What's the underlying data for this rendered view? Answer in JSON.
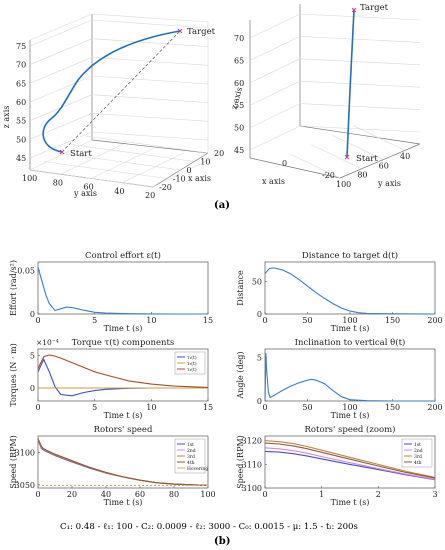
{
  "subfigure_labels": {
    "a": "(a)",
    "b": "(b)"
  },
  "params": "C₁: 0.48 - ℓ₁: 100 - C₂: 0.0009 - ℓ₂: 3000 - C₀: 0.0015 - μ: 1.5 - tₗ: 200s",
  "colors": {
    "trajectory": "#1f6fc2",
    "effort": "#3a7fc6",
    "torque_x": "#3d4fc8",
    "torque_y": "#c8a23a",
    "torque_z": "#a5502f",
    "rotor1": "#4b4bd0",
    "rotor2": "#d58ad6",
    "rotor3": "#b9893a",
    "rotor4": "#8e5a3a",
    "hovering": "#d8b060"
  },
  "chart_data": [
    {
      "type": "line",
      "view": "3d",
      "xlabel": "x axis",
      "ylabel": "y axis",
      "zlabel": "z axis",
      "xticks": [
        "20",
        "10",
        "0",
        "-10",
        "-20"
      ],
      "yticks": [
        "100",
        "80",
        "60",
        "40",
        "20"
      ],
      "zticks": [
        "45",
        "50",
        "55",
        "60",
        "65",
        "70",
        "75"
      ],
      "annotations": [
        "Target",
        "Start"
      ],
      "start": {
        "x": 0,
        "y": 90,
        "z": 47
      },
      "target": {
        "x": 0,
        "y": 20,
        "z": 77
      },
      "series": [
        {
          "values": [
            [
              0,
              90,
              47
            ],
            [
              -12,
              92,
              50
            ],
            [
              -14,
              88,
              55
            ],
            [
              -10,
              80,
              61
            ],
            [
              -5,
              68,
              67
            ],
            [
              -2,
              52,
              71
            ],
            [
              -1,
              38,
              74
            ],
            [
              0,
              20,
              77
            ]
          ]
        }
      ]
    },
    {
      "type": "line",
      "view": "3d",
      "xlabel": "x axis",
      "ylabel": "y axis",
      "zlabel": "z axis",
      "xticks": [
        "0",
        "-20"
      ],
      "yticks": [
        "100",
        "80",
        "60",
        "40"
      ],
      "zticks": [
        "45",
        "50",
        "55",
        "60",
        "65",
        "70"
      ],
      "annotations": [
        "Target",
        "Start"
      ]
    },
    {
      "type": "line",
      "title": "Control effort ε(t)",
      "xlabel": "Time t (s)",
      "ylabel": "Effort (rad/s²)",
      "xlim": [
        0,
        15
      ],
      "ylim": [
        0,
        0.06
      ],
      "xticks": [
        0,
        5,
        10,
        15
      ],
      "yticks": [
        0,
        0.05
      ],
      "x": [
        0,
        0.3,
        0.7,
        1,
        1.5,
        2,
        2.5,
        3,
        3.5,
        4,
        5,
        6,
        8,
        10,
        12,
        15
      ],
      "series": [
        {
          "values": [
            0.054,
            0.04,
            0.022,
            0.012,
            0.004,
            0.006,
            0.008,
            0.0075,
            0.006,
            0.0045,
            0.002,
            0.001,
            0.0003,
            0.0001,
            0,
            0
          ]
        }
      ]
    },
    {
      "type": "line",
      "title": "Distance to target d(t)",
      "xlabel": "Time t (s)",
      "ylabel": "Distance",
      "xlim": [
        0,
        200
      ],
      "ylim": [
        0,
        80
      ],
      "xticks": [
        0,
        50,
        100,
        150,
        200
      ],
      "yticks": [
        0,
        50
      ],
      "x": [
        0,
        5,
        10,
        20,
        30,
        40,
        50,
        60,
        70,
        80,
        90,
        100,
        110,
        120,
        150,
        200
      ],
      "series": [
        {
          "values": [
            62,
            70,
            71,
            68,
            62,
            53,
            43,
            33,
            24,
            16,
            9,
            4.5,
            2,
            1,
            0.3,
            0
          ]
        }
      ]
    },
    {
      "type": "line",
      "title": "Torque τ(t) components",
      "xlabel": "Time t (s)",
      "ylabel": "Torques (N · m)",
      "multiplier": "×10⁻⁴",
      "xlim": [
        0,
        15
      ],
      "ylim": [
        -2,
        6
      ],
      "xticks": [
        0,
        5,
        10,
        15
      ],
      "yticks": [
        0,
        5
      ],
      "x": [
        0,
        0.5,
        1,
        1.5,
        2,
        3,
        4,
        5,
        6,
        8,
        10,
        12,
        15
      ],
      "legend": {
        "entries": [
          "τ₁(t)",
          "τ₂(t)",
          "τ₃(t)"
        ],
        "position": "top-right"
      },
      "series": [
        {
          "name": "τ₁(t)",
          "values": [
            2.5,
            4.4,
            2.5,
            0.2,
            -1.0,
            -1.2,
            -0.7,
            -0.4,
            -0.2,
            -0.05,
            0,
            0,
            0
          ]
        },
        {
          "name": "τ₂(t)",
          "values": [
            0,
            0,
            0,
            0,
            0,
            0,
            0,
            0,
            0,
            0,
            0,
            0,
            0
          ]
        },
        {
          "name": "τ₃(t)",
          "values": [
            3.0,
            4.8,
            5.1,
            4.9,
            4.6,
            3.9,
            3.2,
            2.5,
            2.0,
            1.1,
            0.6,
            0.3,
            0.1
          ]
        }
      ]
    },
    {
      "type": "line",
      "title": "Inclination to vertical θ(t)",
      "xlabel": "Time t (s)",
      "ylabel": "Angle (deg)",
      "xlim": [
        0,
        200
      ],
      "ylim": [
        0,
        6
      ],
      "xticks": [
        0,
        50,
        100,
        150,
        200
      ],
      "yticks": [
        0,
        5
      ],
      "x": [
        0,
        1,
        2,
        4,
        6,
        10,
        20,
        30,
        40,
        50,
        55,
        60,
        70,
        80,
        90,
        100,
        120,
        150,
        200
      ],
      "series": [
        {
          "values": [
            0,
            5.5,
            3.5,
            1,
            0.4,
            0.6,
            1.2,
            1.7,
            2.1,
            2.4,
            2.5,
            2.4,
            2.0,
            1.2,
            0.5,
            0.15,
            0.03,
            0,
            0
          ]
        }
      ]
    },
    {
      "type": "line",
      "title": "Rotors' speed",
      "xlabel": "Time t (s)",
      "ylabel": "Speed (RPM)",
      "xlim": [
        0,
        100
      ],
      "ylim": [
        3045,
        3125
      ],
      "xticks": [
        0,
        20,
        40,
        60,
        80,
        100
      ],
      "yticks": [
        3050,
        3100
      ],
      "x": [
        0,
        1,
        2,
        3,
        5,
        10,
        20,
        30,
        40,
        50,
        60,
        70,
        80,
        90,
        100
      ],
      "legend": {
        "entries": [
          "1st",
          "2nd",
          "3rd",
          "4th",
          "Hovering"
        ],
        "position": "top-right"
      },
      "series": [
        {
          "name": "1st",
          "values": [
            3118,
            3112,
            3106,
            3104,
            3101,
            3095,
            3085,
            3076,
            3068,
            3062,
            3057,
            3053,
            3051,
            3050,
            3049
          ]
        },
        {
          "name": "2nd",
          "values": [
            3119,
            3113,
            3107,
            3105,
            3102,
            3096,
            3086,
            3077,
            3069,
            3062,
            3057,
            3053,
            3051,
            3050,
            3049
          ]
        },
        {
          "name": "3rd",
          "values": [
            3120,
            3114,
            3108,
            3105,
            3102,
            3096,
            3086,
            3077,
            3068,
            3062,
            3057,
            3053,
            3051,
            3050,
            3049
          ]
        },
        {
          "name": "4th",
          "values": [
            3121,
            3115,
            3109,
            3106,
            3103,
            3097,
            3087,
            3077,
            3069,
            3062,
            3057,
            3053,
            3051,
            3050,
            3049
          ]
        },
        {
          "name": "Hovering",
          "values": [
            3049,
            3049,
            3049,
            3049,
            3049,
            3049,
            3049,
            3049,
            3049,
            3049,
            3049,
            3049,
            3049,
            3049,
            3049
          ]
        }
      ]
    },
    {
      "type": "line",
      "title": "Rotors' speed (zoom)",
      "xlabel": "Time t (s)",
      "ylabel": "Speed (RPM)",
      "xlim": [
        0,
        3
      ],
      "ylim": [
        3100,
        3122
      ],
      "xticks": [
        0,
        1,
        2,
        3
      ],
      "yticks": [
        3100,
        3110,
        3120
      ],
      "x": [
        0,
        0.25,
        0.5,
        0.75,
        1,
        1.5,
        2,
        2.5,
        3
      ],
      "legend": {
        "entries": [
          "1st",
          "2nd",
          "3rd",
          "4th"
        ],
        "position": "top-right"
      },
      "series": [
        {
          "name": "1st",
          "values": [
            3115.5,
            3115.2,
            3114.5,
            3113.5,
            3112.3,
            3110,
            3107.8,
            3105.5,
            3103.5
          ]
        },
        {
          "name": "2nd",
          "values": [
            3117,
            3116.6,
            3115.8,
            3114.7,
            3113.3,
            3110.7,
            3108.2,
            3105.8,
            3103.7
          ]
        },
        {
          "name": "3rd",
          "values": [
            3120,
            3119.6,
            3118.8,
            3117.5,
            3116,
            3113,
            3110,
            3107,
            3104.5
          ]
        },
        {
          "name": "4th",
          "values": [
            3119,
            3118.6,
            3117.8,
            3116.6,
            3115.1,
            3112.2,
            3109.3,
            3106.5,
            3104.2
          ]
        }
      ]
    }
  ]
}
